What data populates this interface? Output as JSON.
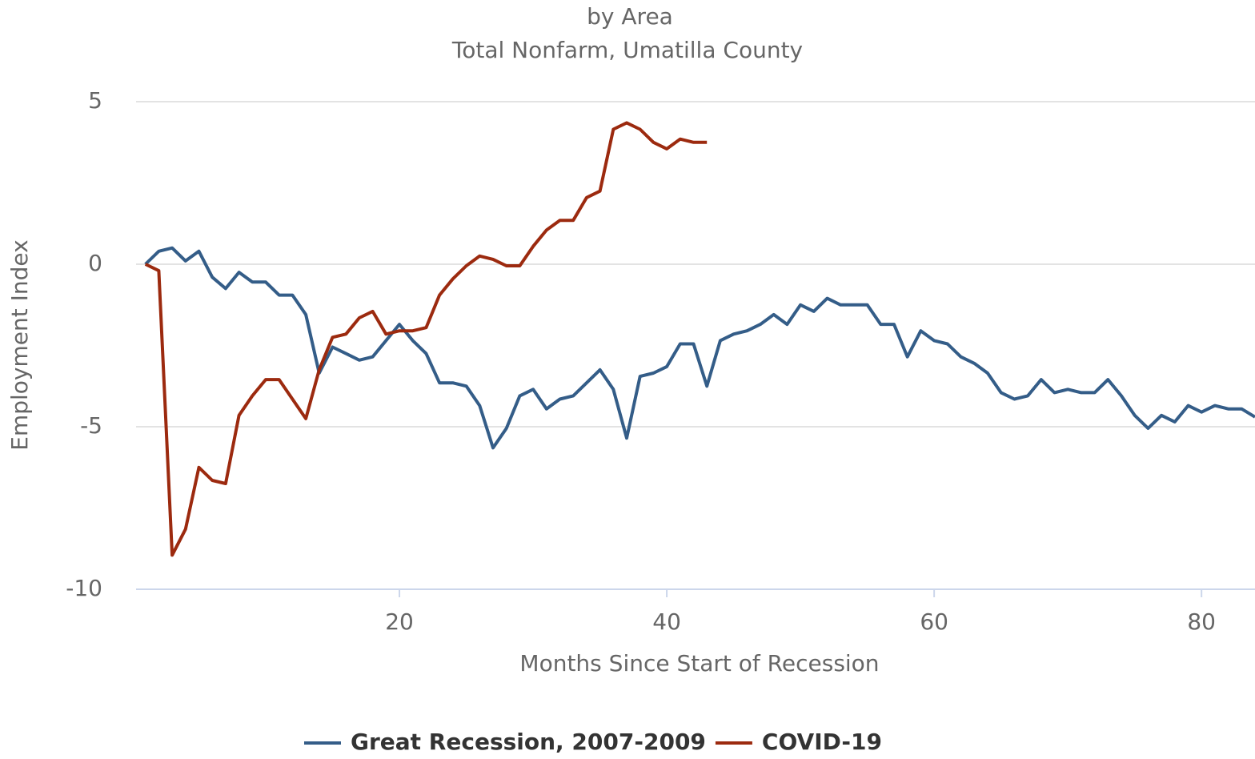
{
  "chart_data": {
    "type": "line",
    "title": "by Area",
    "subtitle": "Total Nonfarm, Umatilla County",
    "xlabel": "Months Since Start of Recession",
    "ylabel": "Employment Index",
    "x": [
      1,
      2,
      3,
      4,
      5,
      6,
      7,
      8,
      9,
      10,
      11,
      12,
      13,
      14,
      15,
      16,
      17,
      18,
      19,
      20,
      21,
      22,
      23,
      24,
      25,
      26,
      27,
      28,
      29,
      30,
      31,
      32,
      33,
      34,
      35,
      36,
      37,
      38,
      39,
      40,
      41,
      42,
      43,
      44,
      45,
      46,
      47,
      48,
      49,
      50,
      51,
      52,
      53,
      54,
      55,
      56,
      57,
      58,
      59,
      60,
      61,
      62,
      63,
      64,
      65,
      66,
      67,
      68,
      69,
      70,
      71,
      72,
      73,
      74,
      75,
      76,
      77,
      78,
      79,
      80,
      81,
      82,
      83,
      84
    ],
    "series": [
      {
        "name": "Great Recession, 2007-2009",
        "color": "#345d88",
        "values": [
          0,
          0.4,
          0.5,
          0.1,
          0.4,
          -0.4,
          -0.75,
          -0.25,
          -0.55,
          -0.55,
          -0.95,
          -0.95,
          -1.55,
          -3.35,
          -2.55,
          -2.75,
          -2.95,
          -2.85,
          -2.35,
          -1.85,
          -2.35,
          -2.75,
          -3.65,
          -3.65,
          -3.75,
          -4.35,
          -5.65,
          -5.05,
          -4.05,
          -3.85,
          -4.45,
          -4.15,
          -4.05,
          -3.65,
          -3.25,
          -3.85,
          -5.35,
          -3.45,
          -3.35,
          -3.15,
          -2.45,
          -2.45,
          -3.75,
          -2.35,
          -2.15,
          -2.05,
          -1.85,
          -1.55,
          -1.85,
          -1.25,
          -1.45,
          -1.05,
          -1.25,
          -1.25,
          -1.25,
          -1.85,
          -1.85,
          -2.85,
          -2.05,
          -2.35,
          -2.45,
          -2.85,
          -3.05,
          -3.35,
          -3.95,
          -4.15,
          -4.05,
          -3.55,
          -3.95,
          -3.85,
          -3.95,
          -3.95,
          -3.55,
          -4.05,
          -4.65,
          -5.05,
          -4.65,
          -4.85,
          -4.35,
          -4.55,
          -4.35,
          -4.45,
          -4.45,
          -4.7
        ]
      },
      {
        "name": "COVID-19",
        "color": "#9c2a0f",
        "values": [
          0,
          -0.2,
          -8.95,
          -8.15,
          -6.25,
          -6.65,
          -6.75,
          -4.65,
          -4.05,
          -3.55,
          -3.55,
          -4.15,
          -4.75,
          -3.25,
          -2.25,
          -2.15,
          -1.65,
          -1.45,
          -2.15,
          -2.05,
          -2.05,
          -1.95,
          -0.95,
          -0.45,
          -0.05,
          0.25,
          0.15,
          -0.05,
          -0.05,
          0.55,
          1.05,
          1.35,
          1.35,
          2.05,
          2.25,
          4.15,
          4.35,
          4.15,
          3.75,
          3.55,
          3.85,
          3.75,
          3.75,
          null,
          null,
          null,
          null,
          null,
          null,
          null,
          null,
          null,
          null,
          null,
          null,
          null,
          null,
          null,
          null,
          null,
          null,
          null,
          null,
          null,
          null,
          null,
          null,
          null,
          null,
          null,
          null,
          null,
          null,
          null,
          null,
          null,
          null,
          null,
          null,
          null,
          null,
          null,
          null,
          null
        ]
      }
    ],
    "xlim": [
      0.3,
      84
    ],
    "xticks": [
      20,
      40,
      60,
      80
    ],
    "ylim": [
      -10,
      5
    ],
    "yticks": [
      -10,
      -5,
      0,
      5
    ],
    "grid": true,
    "legend": "bottom"
  }
}
